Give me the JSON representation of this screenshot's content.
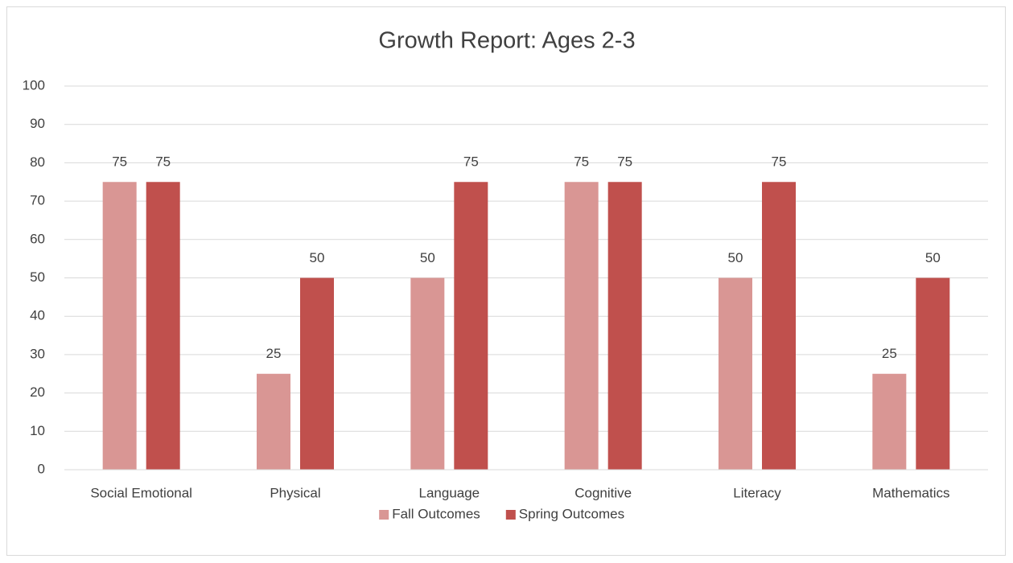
{
  "chart_data": {
    "type": "bar",
    "title": "Growth Report: Ages 2-3",
    "categories": [
      "Social Emotional",
      "Physical",
      "Language",
      "Cognitive",
      "Literacy",
      "Mathematics"
    ],
    "series": [
      {
        "name": "Fall Outcomes",
        "color": "#d99694",
        "values": [
          75,
          25,
          50,
          75,
          50,
          25
        ]
      },
      {
        "name": "Spring Outcomes",
        "color": "#c0504d",
        "values": [
          75,
          50,
          75,
          75,
          75,
          50
        ]
      }
    ],
    "ylim": [
      0,
      100
    ],
    "yticks": [
      0,
      10,
      20,
      30,
      40,
      50,
      60,
      70,
      80,
      90,
      100
    ],
    "grid": true,
    "legend": "bottom"
  }
}
